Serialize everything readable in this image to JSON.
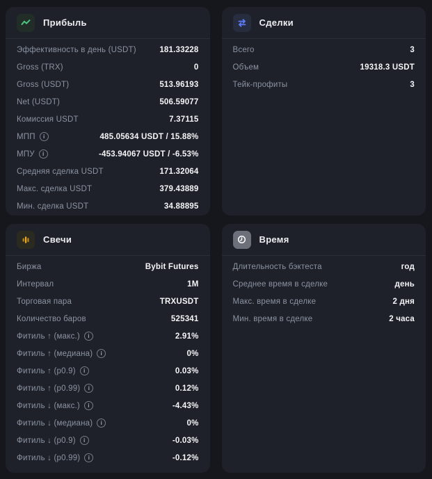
{
  "theme": {
    "page_bg": "#15171c",
    "card_bg": "#1e2129",
    "divider": "#2a2e37",
    "label_color": "#8c93a2",
    "value_color": "#f4f5f7",
    "profit_accent": "#4cc581",
    "trades_accent": "#5c7dfb",
    "candles_accent": "#dd9a10",
    "time_tile_bg": "#6b707a"
  },
  "cards": [
    {
      "id": "profit",
      "title": "Прибыль",
      "icon": "trend-line-icon",
      "rows": [
        {
          "label": "Эффективность в день (USDT)",
          "value": "181.33228"
        },
        {
          "label": "Gross (TRX)",
          "value": "0"
        },
        {
          "label": "Gross (USDT)",
          "value": "513.96193"
        },
        {
          "label": "Net (USDT)",
          "value": "506.59077"
        },
        {
          "label": "Комиссия USDT",
          "value": "7.37115"
        },
        {
          "label": "МПП",
          "info": true,
          "value": "485.05634 USDT / 15.88%"
        },
        {
          "label": "МПУ",
          "info": true,
          "value": "-453.94067 USDT / -6.53%"
        },
        {
          "label": "Средняя сделка USDT",
          "value": "171.32064"
        },
        {
          "label": "Макс. сделка USDT",
          "value": "379.43889"
        },
        {
          "label": "Мин. сделка USDT",
          "value": "34.88895"
        }
      ]
    },
    {
      "id": "trades",
      "title": "Сделки",
      "icon": "swap-arrows-icon",
      "rows": [
        {
          "label": "Всего",
          "value": "3"
        },
        {
          "label": "Объем",
          "value": "19318.3 USDT"
        },
        {
          "label": "Тейк-профиты",
          "value": "3"
        }
      ]
    },
    {
      "id": "candles",
      "title": "Свечи",
      "icon": "candlestick-icon",
      "rows": [
        {
          "label": "Биржа",
          "value": "Bybit Futures"
        },
        {
          "label": "Интервал",
          "value": "1M"
        },
        {
          "label": "Торговая пара",
          "value": "TRXUSDT"
        },
        {
          "label": "Количество баров",
          "value": "525341"
        },
        {
          "label": "Фитиль ↑ (макс.)",
          "info": true,
          "value": "2.91%"
        },
        {
          "label": "Фитиль ↑ (медиана)",
          "info": true,
          "value": "0%"
        },
        {
          "label": "Фитиль ↑ (p0.9)",
          "info": true,
          "value": "0.03%"
        },
        {
          "label": "Фитиль ↑ (p0.99)",
          "info": true,
          "value": "0.12%"
        },
        {
          "label": "Фитиль ↓ (макс.)",
          "info": true,
          "value": "-4.43%"
        },
        {
          "label": "Фитиль ↓ (медиана)",
          "info": true,
          "value": "0%"
        },
        {
          "label": "Фитиль ↓ (p0.9)",
          "info": true,
          "value": "-0.03%"
        },
        {
          "label": "Фитиль ↓ (p0.99)",
          "info": true,
          "value": "-0.12%"
        }
      ]
    },
    {
      "id": "time",
      "title": "Время",
      "icon": "clock-icon",
      "rows": [
        {
          "label": "Длительность бэктеста",
          "value": "год"
        },
        {
          "label": "Среднее время в сделке",
          "value": "день"
        },
        {
          "label": "Макс. время в сделке",
          "value": "2 дня"
        },
        {
          "label": "Мин. время в сделке",
          "value": "2 часа"
        }
      ]
    }
  ],
  "info_icon_glyph": "i"
}
